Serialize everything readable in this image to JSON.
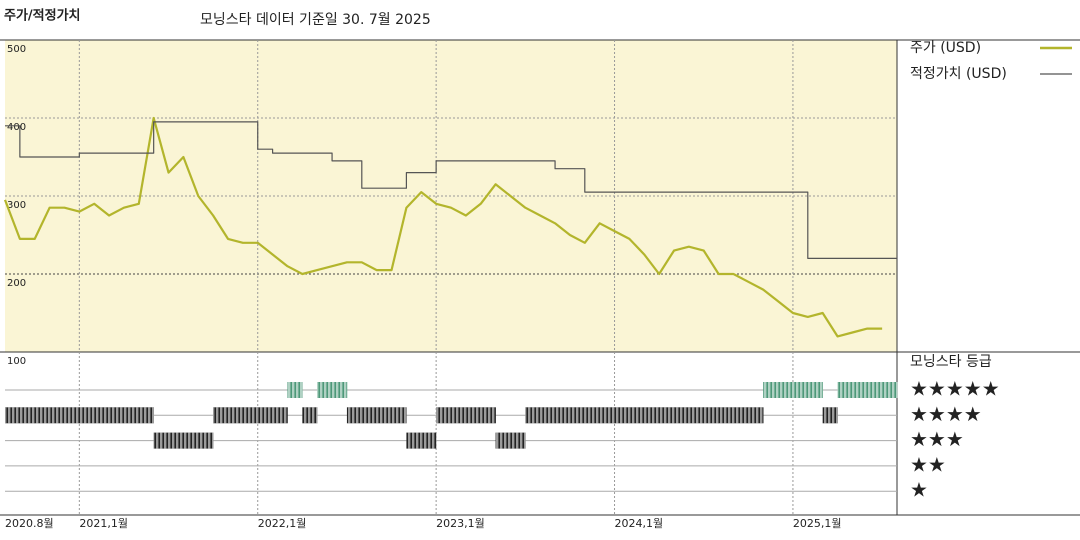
{
  "chart_data": {
    "type": "line",
    "title": "주가/적정가치",
    "subtitle": "모닝스타 데이터 기준일 30. 7월 2025",
    "x": [
      "2020-08",
      "2020-09",
      "2020-10",
      "2020-11",
      "2020-12",
      "2021-01",
      "2021-02",
      "2021-03",
      "2021-04",
      "2021-05",
      "2021-06",
      "2021-07",
      "2021-08",
      "2021-09",
      "2021-10",
      "2021-11",
      "2021-12",
      "2022-01",
      "2022-02",
      "2022-03",
      "2022-04",
      "2022-05",
      "2022-06",
      "2022-07",
      "2022-08",
      "2022-09",
      "2022-10",
      "2022-11",
      "2022-12",
      "2023-01",
      "2023-02",
      "2023-03",
      "2023-04",
      "2023-05",
      "2023-06",
      "2023-07",
      "2023-08",
      "2023-09",
      "2023-10",
      "2023-11",
      "2023-12",
      "2024-01",
      "2024-02",
      "2024-03",
      "2024-04",
      "2024-05",
      "2024-06",
      "2024-07",
      "2024-08",
      "2024-09",
      "2024-10",
      "2024-11",
      "2024-12",
      "2025-01",
      "2025-02",
      "2025-03",
      "2025-04",
      "2025-05",
      "2025-06",
      "2025-07"
    ],
    "xlim": [
      "2020-08",
      "2025-08"
    ],
    "xticks": [
      {
        "value": "2020-08",
        "label": "2020.8월"
      },
      {
        "value": "2021-01",
        "label": "2021,1월"
      },
      {
        "value": "2022-01",
        "label": "2022,1월"
      },
      {
        "value": "2023-01",
        "label": "2023,1월"
      },
      {
        "value": "2024-01",
        "label": "2024,1월"
      },
      {
        "value": "2025-01",
        "label": "2025,1월"
      }
    ],
    "ylim": [
      100,
      500
    ],
    "yticks": [
      500,
      400,
      300,
      200,
      100
    ],
    "grid": true,
    "series": [
      {
        "name": "주가 (USD)",
        "color": "#b3b52c",
        "values": [
          295,
          245,
          245,
          285,
          285,
          280,
          290,
          275,
          285,
          290,
          400,
          330,
          350,
          300,
          275,
          245,
          240,
          240,
          225,
          210,
          200,
          205,
          210,
          215,
          215,
          205,
          205,
          285,
          305,
          290,
          285,
          275,
          290,
          315,
          300,
          285,
          275,
          265,
          250,
          240,
          265,
          255,
          245,
          225,
          200,
          230,
          235,
          230,
          200,
          200,
          190,
          180,
          165,
          150,
          145,
          150,
          120,
          125,
          130,
          130
        ]
      },
      {
        "name": "적정가치 (USD)",
        "color": "#555555",
        "step": true,
        "values": [
          390,
          350,
          350,
          350,
          350,
          355,
          355,
          355,
          355,
          355,
          395,
          395,
          395,
          395,
          395,
          395,
          395,
          360,
          355,
          355,
          355,
          355,
          345,
          345,
          310,
          310,
          310,
          330,
          330,
          345,
          345,
          345,
          345,
          345,
          345,
          345,
          345,
          335,
          335,
          305,
          305,
          305,
          305,
          305,
          305,
          305,
          305,
          305,
          305,
          305,
          305,
          305,
          305,
          305,
          220,
          220,
          220,
          220,
          220,
          220
        ]
      }
    ],
    "ratings": {
      "title": "모닝스타 등급",
      "levels": [
        5,
        4,
        3,
        2,
        1
      ],
      "level_labels": [
        "★★★★★",
        "★★★★",
        "★★★",
        "★★",
        "★"
      ],
      "colors": {
        "5": "#4d9879",
        "other": "#222222"
      },
      "values": [
        4,
        4,
        4,
        4,
        4,
        4,
        4,
        4,
        4,
        4,
        3,
        3,
        3,
        3,
        4,
        4,
        4,
        4,
        4,
        5,
        4,
        5,
        5,
        4,
        4,
        4,
        4,
        3,
        3,
        4,
        4,
        4,
        4,
        3,
        3,
        4,
        4,
        4,
        4,
        4,
        4,
        4,
        4,
        4,
        4,
        4,
        4,
        4,
        4,
        4,
        4,
        5,
        5,
        5,
        5,
        4,
        5,
        5,
        5,
        5
      ]
    }
  }
}
